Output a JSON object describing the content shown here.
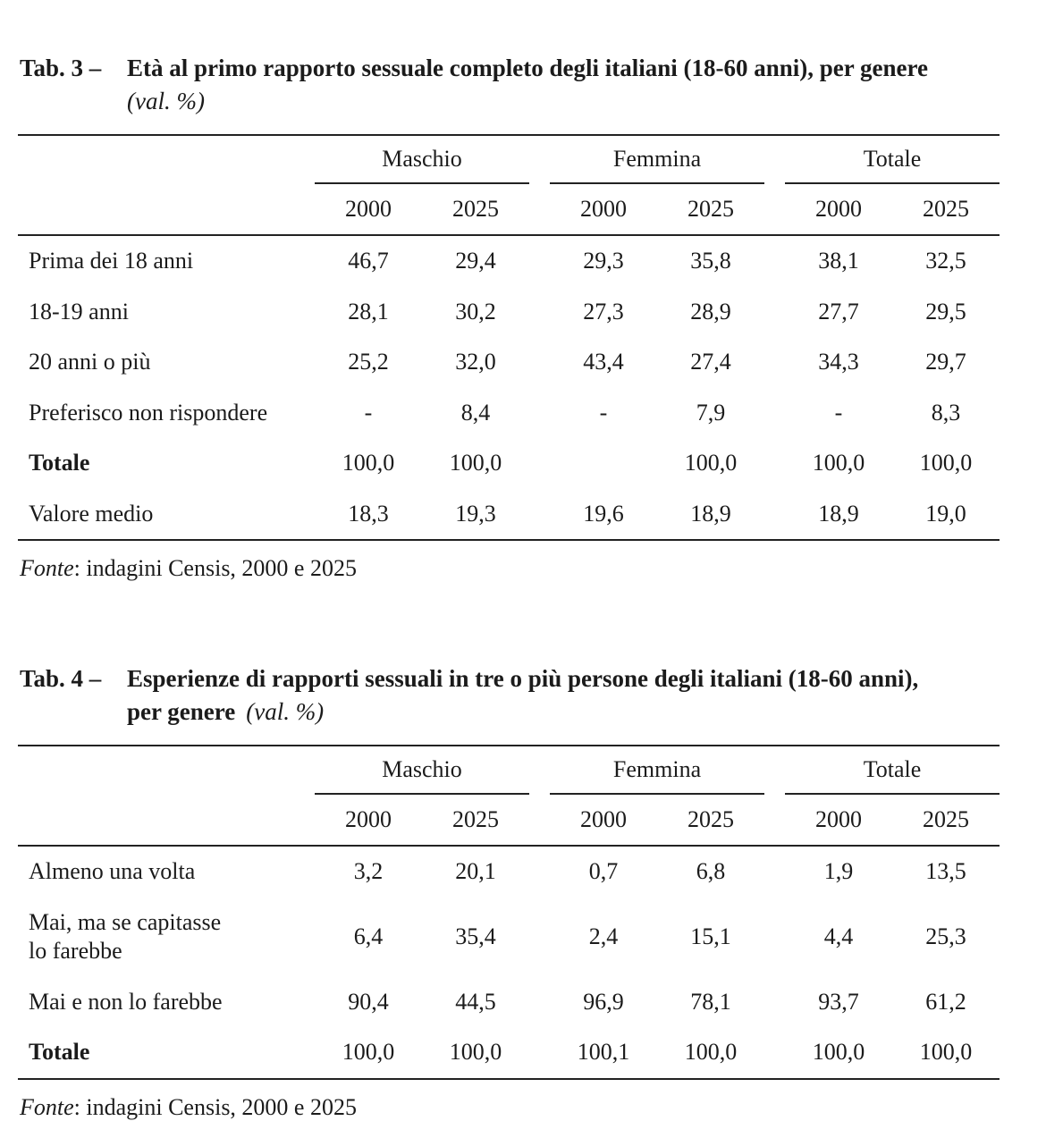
{
  "style": {
    "background": "#ffffff",
    "text_color": "#1b1b1b",
    "rule_color": "#222222"
  },
  "tables": [
    {
      "label": "Tab. 3 –",
      "title": "Età al primo rapporto sessuale completo degli italiani (18-60 anni), per genere",
      "subtitle": "(val. %)",
      "groups": [
        "Maschio",
        "Femmina",
        "Totale"
      ],
      "years": [
        "2000",
        "2025",
        "2000",
        "2025",
        "2000",
        "2025"
      ],
      "rows": [
        {
          "label": "Prima dei 18 anni",
          "values": [
            "46,7",
            "29,4",
            "29,3",
            "35,8",
            "38,1",
            "32,5"
          ]
        },
        {
          "label": "18-19 anni",
          "values": [
            "28,1",
            "30,2",
            "27,3",
            "28,9",
            "27,7",
            "29,5"
          ]
        },
        {
          "label": "20 anni o più",
          "values": [
            "25,2",
            "32,0",
            "43,4",
            "27,4",
            "34,3",
            "29,7"
          ]
        },
        {
          "label": "Preferisco non rispondere",
          "values": [
            "-",
            "8,4",
            "-",
            "7,9",
            "-",
            "8,3"
          ]
        },
        {
          "label": "Totale",
          "values": [
            "100,0",
            "100,0",
            "",
            "100,0",
            "100,0",
            "100,0"
          ]
        },
        {
          "label": "Valore medio",
          "values": [
            "18,3",
            "19,3",
            "19,6",
            "18,9",
            "18,9",
            "19,0"
          ]
        }
      ],
      "source_label": "Fonte",
      "source_text": ": indagini Censis, 2000 e 2025"
    },
    {
      "label": "Tab. 4 –",
      "title": "Esperienze di rapporti sessuali in tre o più persone degli italiani (18-60 anni),",
      "title_line2": "per genere",
      "subtitle": "(val. %)",
      "groups": [
        "Maschio",
        "Femmina",
        "Totale"
      ],
      "years": [
        "2000",
        "2025",
        "2000",
        "2025",
        "2000",
        "2025"
      ],
      "rows": [
        {
          "label": "Almeno una volta",
          "values": [
            "3,2",
            "20,1",
            "0,7",
            "6,8",
            "1,9",
            "13,5"
          ]
        },
        {
          "label": "Mai, ma se capitasse\nlo farebbe",
          "values": [
            "6,4",
            "35,4",
            "2,4",
            "15,1",
            "4,4",
            "25,3"
          ]
        },
        {
          "label": "Mai e non lo farebbe",
          "values": [
            "90,4",
            "44,5",
            "96,9",
            "78,1",
            "93,7",
            "61,2"
          ]
        },
        {
          "label": "Totale",
          "values": [
            "100,0",
            "100,0",
            "100,1",
            "100,0",
            "100,0",
            "100,0"
          ]
        }
      ],
      "source_label": "Fonte",
      "source_text": ": indagini Censis, 2000 e 2025"
    }
  ]
}
